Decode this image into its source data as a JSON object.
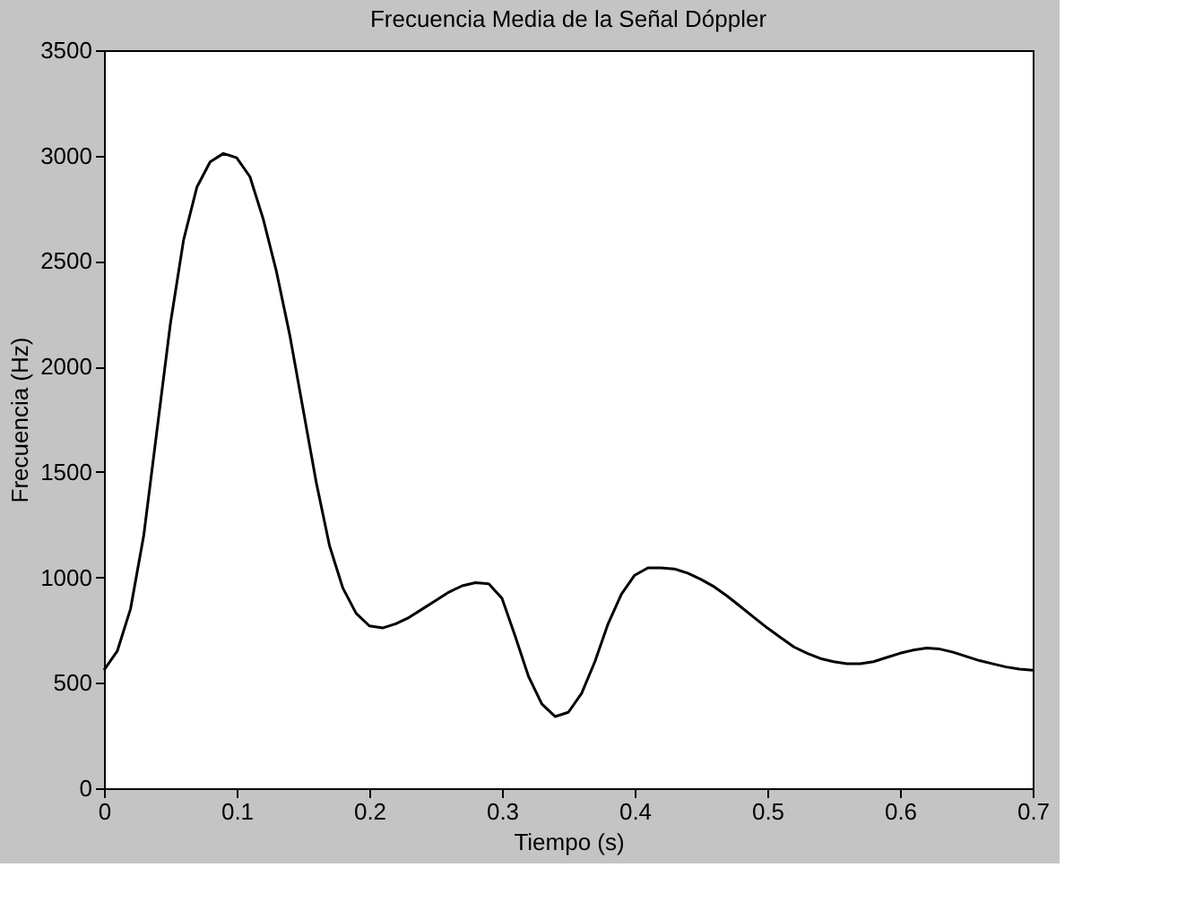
{
  "chart_data": {
    "type": "line",
    "title": "Frecuencia Media de la Señal Dóppler",
    "xlabel": "Tiempo (s)",
    "ylabel": "Frecuencia (Hz)",
    "x": [
      0,
      0.01,
      0.02,
      0.03,
      0.04,
      0.05,
      0.06,
      0.07,
      0.08,
      0.09,
      0.1,
      0.11,
      0.12,
      0.13,
      0.14,
      0.15,
      0.16,
      0.17,
      0.18,
      0.19,
      0.2,
      0.21,
      0.22,
      0.23,
      0.24,
      0.25,
      0.26,
      0.27,
      0.28,
      0.29,
      0.3,
      0.31,
      0.32,
      0.33,
      0.34,
      0.35,
      0.36,
      0.37,
      0.38,
      0.39,
      0.4,
      0.41,
      0.42,
      0.43,
      0.44,
      0.45,
      0.46,
      0.47,
      0.48,
      0.49,
      0.5,
      0.51,
      0.52,
      0.53,
      0.54,
      0.55,
      0.56,
      0.57,
      0.58,
      0.59,
      0.6,
      0.61,
      0.62,
      0.63,
      0.64,
      0.65,
      0.66,
      0.67,
      0.68,
      0.69,
      0.7
    ],
    "series": [
      {
        "color": "#000000",
        "values": [
          560,
          650,
          850,
          1200,
          1700,
          2200,
          2600,
          2850,
          2970,
          3010,
          2990,
          2900,
          2700,
          2450,
          2150,
          1800,
          1450,
          1150,
          950,
          830,
          770,
          760,
          780,
          810,
          850,
          890,
          930,
          960,
          975,
          970,
          900,
          720,
          530,
          400,
          340,
          360,
          450,
          600,
          780,
          920,
          1010,
          1045,
          1045,
          1040,
          1020,
          990,
          955,
          910,
          860,
          810,
          760,
          715,
          670,
          640,
          615,
          600,
          590,
          590,
          600,
          620,
          640,
          655,
          665,
          660,
          645,
          625,
          605,
          590,
          575,
          565,
          560
        ]
      }
    ],
    "xlim": [
      0,
      0.7
    ],
    "xticks": [
      0,
      0.1,
      0.2,
      0.3,
      0.4,
      0.5,
      0.6,
      0.7
    ],
    "ylim": [
      0,
      3500
    ],
    "yticks": [
      0,
      500,
      1000,
      1500,
      2000,
      2500,
      3000,
      3500
    ],
    "grid": false,
    "line_style": "solid",
    "marker": "none"
  }
}
